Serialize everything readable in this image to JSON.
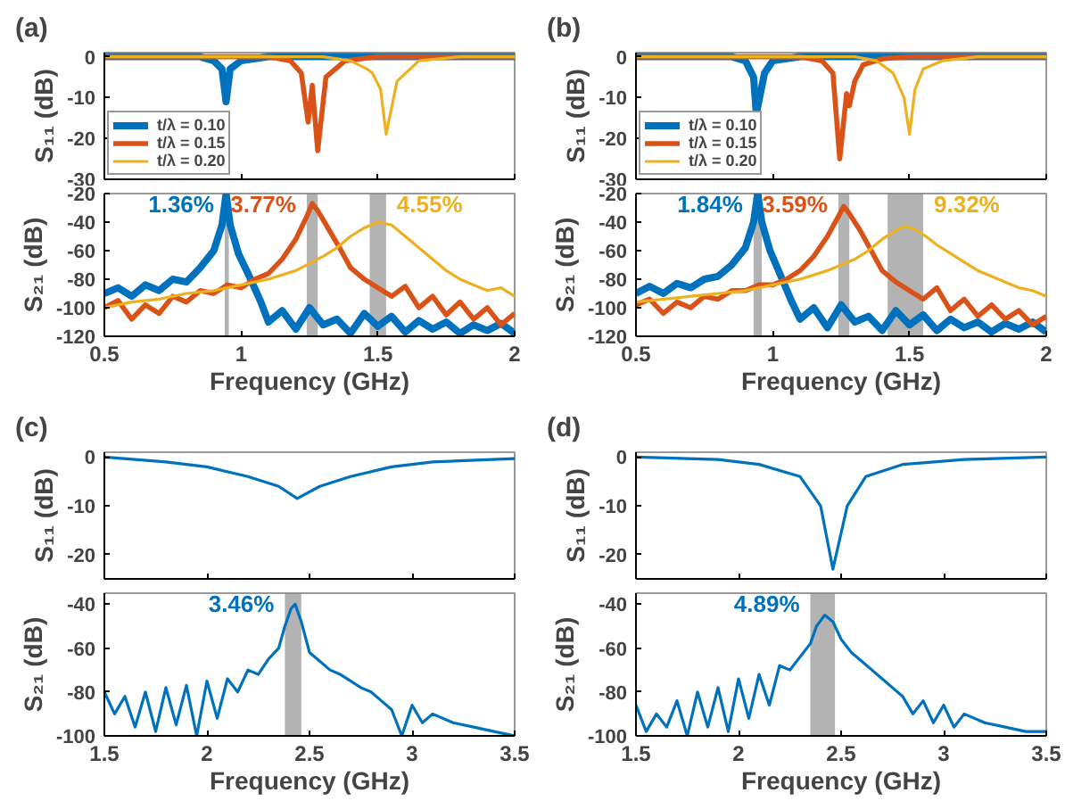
{
  "chart_data": [
    {
      "type": "line",
      "title": "(a)",
      "ylabel": "S₁₁ (dB)",
      "xlim": [
        0.5,
        2
      ],
      "xticks": [
        0.5,
        1,
        1.5,
        2
      ],
      "ylim": [
        -30,
        1
      ],
      "yticks": [
        0,
        -10,
        -20,
        -30
      ],
      "tick_labels": "y",
      "grid": false,
      "legend": "bottom left",
      "series": [
        {
          "name": "t/λ = 0.10",
          "color": "#0072bd",
          "x": [
            0.5,
            0.85,
            0.9,
            0.93,
            0.945,
            0.96,
            1.0,
            1.1,
            2.0
          ],
          "values": [
            0,
            0,
            -1,
            -3,
            -11,
            -3,
            -1,
            0,
            0
          ]
        },
        {
          "name": "t/λ = 0.15",
          "color": "#d95319",
          "x": [
            0.5,
            1.1,
            1.18,
            1.22,
            1.245,
            1.26,
            1.28,
            1.31,
            1.38,
            1.5,
            2.0
          ],
          "values": [
            0,
            0,
            -1,
            -4,
            -16,
            -7,
            -23,
            -5,
            -1,
            0,
            0
          ]
        },
        {
          "name": "t/λ = 0.20",
          "color": "#edb120",
          "x": [
            0.5,
            1.3,
            1.4,
            1.46,
            1.48,
            1.51,
            1.53,
            1.57,
            1.65,
            1.8,
            2.0
          ],
          "values": [
            0,
            0,
            -1,
            -3,
            -4,
            -8,
            -19,
            -6,
            -1,
            0,
            0
          ]
        }
      ]
    },
    {
      "type": "line",
      "title": "(b)",
      "ylabel": "S₁₁ (dB)",
      "xlim": [
        0.5,
        2
      ],
      "xticks": [
        0.5,
        1,
        1.5,
        2
      ],
      "ylim": [
        -30,
        1
      ],
      "yticks": [
        0,
        -10,
        -20,
        -30
      ],
      "tick_labels": "y",
      "grid": false,
      "legend": "bottom left",
      "series": [
        {
          "name": "t/λ = 0.10",
          "color": "#0072bd",
          "x": [
            0.5,
            0.85,
            0.9,
            0.93,
            0.94,
            0.955,
            0.97,
            1.0,
            1.1,
            2.0
          ],
          "values": [
            0,
            0,
            -1,
            -5,
            -14,
            -9,
            -4,
            -1,
            0,
            0
          ]
        },
        {
          "name": "t/λ = 0.15",
          "color": "#d95319",
          "x": [
            0.5,
            1.1,
            1.18,
            1.22,
            1.245,
            1.27,
            1.28,
            1.3,
            1.33,
            1.4,
            1.5,
            2.0
          ],
          "values": [
            0,
            0,
            -1,
            -4,
            -25,
            -9,
            -12,
            -6,
            -2,
            -0.5,
            0,
            0
          ]
        },
        {
          "name": "t/λ = 0.20",
          "color": "#edb120",
          "x": [
            0.5,
            1.3,
            1.38,
            1.44,
            1.48,
            1.5,
            1.52,
            1.55,
            1.62,
            1.75,
            2.0
          ],
          "values": [
            0,
            0,
            -1,
            -4,
            -10,
            -19,
            -8,
            -3,
            -1,
            0,
            0
          ]
        }
      ]
    },
    {
      "type": "line",
      "xlabel": "Frequency (GHz)",
      "ylabel": "S₂₁ (dB)",
      "xlim": [
        0.5,
        2
      ],
      "xticks": [
        0.5,
        1,
        1.5,
        2
      ],
      "ylim": [
        -120,
        -20
      ],
      "yticks": [
        -120,
        -100,
        -80,
        -60,
        -40,
        -20
      ],
      "grid": false,
      "bands": [
        {
          "axis": "x",
          "from": 0.94,
          "to": 0.955,
          "color": "#808080"
        },
        {
          "axis": "x",
          "from": 1.24,
          "to": 1.28,
          "color": "#808080"
        },
        {
          "axis": "x",
          "from": 1.47,
          "to": 1.53,
          "color": "#808080"
        }
      ],
      "annotations": [
        "1.36%",
        "3.77%",
        "4.55%"
      ],
      "series": [
        {
          "color": "#0072bd",
          "x": [
            0.5,
            0.55,
            0.6,
            0.65,
            0.7,
            0.75,
            0.8,
            0.85,
            0.9,
            0.93,
            0.945,
            0.96,
            0.99,
            1.03,
            1.07,
            1.1,
            1.15,
            1.2,
            1.25,
            1.3,
            1.35,
            1.4,
            1.45,
            1.5,
            1.55,
            1.6,
            1.65,
            1.7,
            1.75,
            1.8,
            1.85,
            1.9,
            1.95,
            2.0
          ],
          "values": [
            -90,
            -86,
            -92,
            -84,
            -88,
            -80,
            -82,
            -72,
            -60,
            -42,
            -20,
            -42,
            -62,
            -78,
            -95,
            -110,
            -102,
            -115,
            -100,
            -112,
            -108,
            -118,
            -104,
            -113,
            -106,
            -117,
            -109,
            -115,
            -110,
            -118,
            -112,
            -116,
            -111,
            -118
          ]
        },
        {
          "color": "#d95319",
          "x": [
            0.5,
            0.55,
            0.6,
            0.65,
            0.7,
            0.75,
            0.8,
            0.85,
            0.9,
            0.95,
            1.0,
            1.05,
            1.1,
            1.15,
            1.2,
            1.24,
            1.26,
            1.28,
            1.32,
            1.36,
            1.4,
            1.45,
            1.5,
            1.55,
            1.6,
            1.65,
            1.7,
            1.75,
            1.8,
            1.85,
            1.9,
            1.95,
            2.0
          ],
          "values": [
            -100,
            -95,
            -108,
            -98,
            -104,
            -92,
            -96,
            -88,
            -90,
            -84,
            -86,
            -80,
            -76,
            -66,
            -52,
            -36,
            -27,
            -32,
            -45,
            -58,
            -72,
            -80,
            -86,
            -92,
            -85,
            -100,
            -92,
            -105,
            -96,
            -108,
            -100,
            -112,
            -104
          ]
        },
        {
          "color": "#edb120",
          "x": [
            0.5,
            0.6,
            0.7,
            0.8,
            0.9,
            1.0,
            1.1,
            1.2,
            1.3,
            1.35,
            1.4,
            1.45,
            1.5,
            1.55,
            1.6,
            1.65,
            1.7,
            1.75,
            1.8,
            1.85,
            1.9,
            1.95,
            2.0
          ],
          "values": [
            -100,
            -96,
            -94,
            -90,
            -88,
            -84,
            -80,
            -74,
            -64,
            -58,
            -50,
            -44,
            -40,
            -42,
            -50,
            -58,
            -66,
            -74,
            -80,
            -84,
            -88,
            -86,
            -92
          ]
        }
      ]
    },
    {
      "type": "line",
      "xlabel": "Frequency (GHz)",
      "ylabel": "S₂₁ (dB)",
      "xlim": [
        0.5,
        2
      ],
      "xticks": [
        0.5,
        1,
        1.5,
        2
      ],
      "ylim": [
        -120,
        -20
      ],
      "yticks": [
        -120,
        -100,
        -80,
        -60,
        -40,
        -20
      ],
      "grid": false,
      "bands": [
        {
          "axis": "x",
          "from": 0.93,
          "to": 0.96,
          "color": "#808080"
        },
        {
          "axis": "x",
          "from": 1.24,
          "to": 1.28,
          "color": "#808080"
        },
        {
          "axis": "x",
          "from": 1.42,
          "to": 1.55,
          "color": "#808080"
        }
      ],
      "annotations": [
        "1.84%",
        "3.59%",
        "9.32%"
      ],
      "series": [
        {
          "color": "#0072bd",
          "x": [
            0.5,
            0.55,
            0.6,
            0.65,
            0.7,
            0.75,
            0.8,
            0.85,
            0.9,
            0.93,
            0.945,
            0.96,
            0.99,
            1.03,
            1.07,
            1.1,
            1.15,
            1.2,
            1.25,
            1.3,
            1.35,
            1.4,
            1.45,
            1.5,
            1.55,
            1.6,
            1.65,
            1.7,
            1.75,
            1.8,
            1.85,
            1.9,
            1.95,
            2.0
          ],
          "values": [
            -90,
            -85,
            -90,
            -83,
            -86,
            -80,
            -78,
            -70,
            -58,
            -40,
            -20,
            -40,
            -60,
            -78,
            -96,
            -108,
            -100,
            -114,
            -98,
            -110,
            -106,
            -116,
            -102,
            -112,
            -105,
            -116,
            -108,
            -114,
            -110,
            -117,
            -111,
            -115,
            -110,
            -117
          ]
        },
        {
          "color": "#d95319",
          "x": [
            0.5,
            0.55,
            0.6,
            0.65,
            0.7,
            0.75,
            0.8,
            0.85,
            0.9,
            0.95,
            1.0,
            1.05,
            1.1,
            1.15,
            1.2,
            1.24,
            1.26,
            1.28,
            1.32,
            1.36,
            1.4,
            1.45,
            1.5,
            1.55,
            1.6,
            1.65,
            1.7,
            1.75,
            1.8,
            1.85,
            1.9,
            1.95,
            2.0
          ],
          "values": [
            -98,
            -94,
            -104,
            -96,
            -100,
            -92,
            -94,
            -88,
            -88,
            -84,
            -84,
            -80,
            -74,
            -64,
            -50,
            -36,
            -29,
            -34,
            -46,
            -60,
            -74,
            -82,
            -88,
            -94,
            -86,
            -102,
            -94,
            -106,
            -98,
            -108,
            -102,
            -112,
            -106
          ]
        },
        {
          "color": "#edb120",
          "x": [
            0.5,
            0.6,
            0.7,
            0.8,
            0.9,
            1.0,
            1.1,
            1.2,
            1.3,
            1.35,
            1.4,
            1.45,
            1.48,
            1.52,
            1.56,
            1.6,
            1.65,
            1.7,
            1.75,
            1.8,
            1.85,
            1.9,
            1.95,
            2.0
          ],
          "values": [
            -96,
            -94,
            -92,
            -90,
            -88,
            -84,
            -80,
            -74,
            -66,
            -60,
            -52,
            -46,
            -43,
            -45,
            -50,
            -56,
            -62,
            -68,
            -74,
            -78,
            -82,
            -86,
            -88,
            -92
          ]
        }
      ]
    },
    {
      "type": "line",
      "title": "(c)",
      "ylabel": "S₁₁ (dB)",
      "xlim": [
        1.5,
        3.5
      ],
      "xticks": [
        1.5,
        2,
        2.5,
        3,
        3.5
      ],
      "ylim": [
        -25,
        1
      ],
      "yticks": [
        0,
        -10,
        -20
      ],
      "tick_labels": "y",
      "grid": false,
      "series": [
        {
          "color": "#0072bd",
          "x": [
            1.5,
            1.8,
            2.0,
            2.2,
            2.35,
            2.44,
            2.55,
            2.7,
            2.9,
            3.1,
            3.5
          ],
          "values": [
            0,
            -1,
            -2,
            -4,
            -6,
            -8.5,
            -6,
            -4,
            -2,
            -1,
            -0.3
          ]
        }
      ]
    },
    {
      "type": "line",
      "title": "(d)",
      "ylabel": "S₁₁ (dB)",
      "xlim": [
        1.5,
        3.5
      ],
      "xticks": [
        1.5,
        2,
        2.5,
        3,
        3.5
      ],
      "ylim": [
        -25,
        1
      ],
      "yticks": [
        0,
        -10,
        -20
      ],
      "tick_labels": "y",
      "grid": false,
      "series": [
        {
          "color": "#0072bd",
          "x": [
            1.5,
            1.9,
            2.1,
            2.3,
            2.4,
            2.46,
            2.53,
            2.62,
            2.8,
            3.1,
            3.5
          ],
          "values": [
            0,
            -0.5,
            -1.5,
            -4,
            -10,
            -23,
            -10,
            -4,
            -1.5,
            -0.5,
            0
          ]
        }
      ]
    },
    {
      "type": "line",
      "xlabel": "Frequency (GHz)",
      "ylabel": "S₂₁ (dB)",
      "xlim": [
        1.5,
        3.5
      ],
      "xticks": [
        1.5,
        2,
        2.5,
        3,
        3.5
      ],
      "ylim": [
        -100,
        -35
      ],
      "yticks": [
        -100,
        -80,
        -60,
        -40
      ],
      "grid": false,
      "bands": [
        {
          "axis": "x",
          "from": 2.38,
          "to": 2.46,
          "color": "#808080"
        }
      ],
      "annotations": [
        "3.46%"
      ],
      "series": [
        {
          "color": "#0072bd",
          "x": [
            1.5,
            1.55,
            1.6,
            1.65,
            1.7,
            1.75,
            1.8,
            1.85,
            1.9,
            1.95,
            2.0,
            2.05,
            2.1,
            2.15,
            2.2,
            2.25,
            2.3,
            2.35,
            2.38,
            2.41,
            2.43,
            2.46,
            2.5,
            2.55,
            2.6,
            2.65,
            2.7,
            2.75,
            2.8,
            2.85,
            2.9,
            2.95,
            3.0,
            3.05,
            3.1,
            3.2,
            3.3,
            3.4,
            3.5
          ],
          "values": [
            -80,
            -90,
            -82,
            -96,
            -80,
            -98,
            -78,
            -95,
            -77,
            -100,
            -75,
            -92,
            -74,
            -80,
            -70,
            -72,
            -65,
            -60,
            -50,
            -42,
            -40,
            -48,
            -62,
            -66,
            -70,
            -72,
            -75,
            -78,
            -80,
            -84,
            -88,
            -100,
            -86,
            -94,
            -90,
            -94,
            -96,
            -98,
            -100
          ]
        }
      ]
    },
    {
      "type": "line",
      "xlabel": "Frequency (GHz)",
      "ylabel": "S₂₁ (dB)",
      "xlim": [
        1.5,
        3.5
      ],
      "xticks": [
        1.5,
        2,
        2.5,
        3,
        3.5
      ],
      "ylim": [
        -100,
        -35
      ],
      "yticks": [
        -100,
        -80,
        -60,
        -40
      ],
      "grid": false,
      "bands": [
        {
          "axis": "x",
          "from": 2.35,
          "to": 2.47,
          "color": "#808080"
        }
      ],
      "annotations": [
        "4.89%"
      ],
      "series": [
        {
          "color": "#0072bd",
          "x": [
            1.5,
            1.55,
            1.6,
            1.65,
            1.7,
            1.75,
            1.8,
            1.85,
            1.9,
            1.95,
            2.0,
            2.05,
            2.1,
            2.15,
            2.2,
            2.25,
            2.3,
            2.35,
            2.38,
            2.42,
            2.46,
            2.5,
            2.55,
            2.6,
            2.65,
            2.7,
            2.75,
            2.8,
            2.85,
            2.9,
            2.95,
            3.0,
            3.05,
            3.1,
            3.2,
            3.3,
            3.4,
            3.5
          ],
          "values": [
            -86,
            -98,
            -90,
            -96,
            -84,
            -100,
            -80,
            -96,
            -78,
            -98,
            -74,
            -92,
            -72,
            -86,
            -68,
            -70,
            -64,
            -58,
            -50,
            -45,
            -48,
            -56,
            -62,
            -66,
            -70,
            -74,
            -78,
            -82,
            -90,
            -84,
            -94,
            -86,
            -96,
            -90,
            -94,
            -96,
            -98,
            -98
          ]
        }
      ]
    }
  ]
}
